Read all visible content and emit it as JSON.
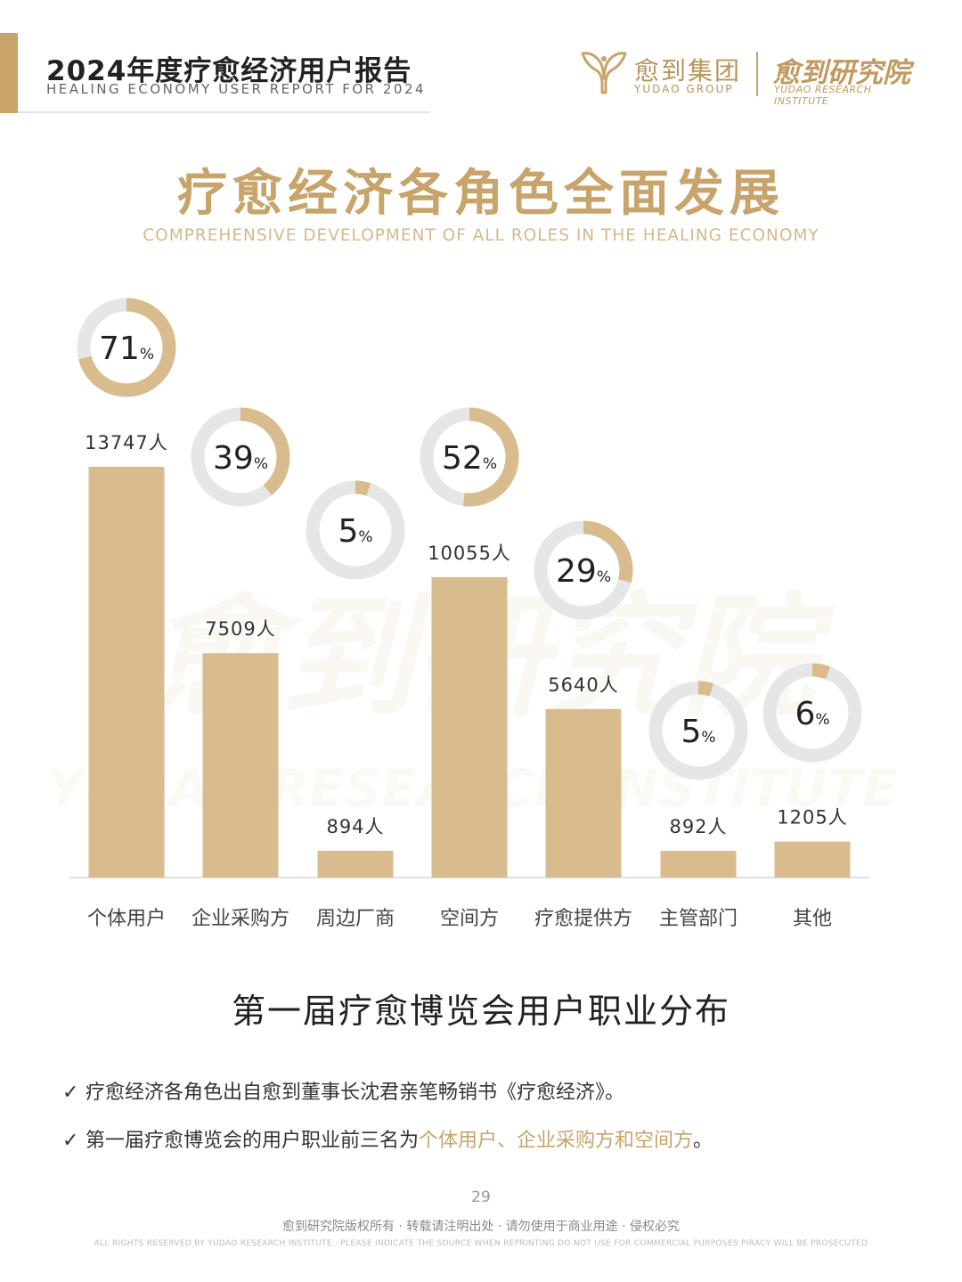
{
  "header": {
    "title": "2024年度疗愈经济用户报告",
    "subtitle": "HEALING ECONOMY USER REPORT FOR 2024"
  },
  "brand": {
    "group_cn": "愈到集团",
    "group_en": "YUDAO GROUP",
    "institute_cn": "愈到研究院",
    "institute_en": "YUDAO RESEARCH INSTITUTE"
  },
  "main": {
    "title": "疗愈经济各角色全面发展",
    "subtitle": "COMPREHENSIVE DEVELOPMENT OF ALL ROLES IN THE HEALING ECONOMY"
  },
  "watermark": {
    "cn": "愈到研究院",
    "en": "YUDAO RESEARCH INSTITUTE"
  },
  "colors": {
    "accent": "#c8a36a",
    "bar": "#d9bc8d",
    "ring_track": "#e6e6e6"
  },
  "chart_data": {
    "type": "bar",
    "title": "第一届疗愈博览会用户职业分布",
    "categories": [
      "个体用户",
      "企业采购方",
      "周边厂商",
      "空间方",
      "疗愈提供方",
      "主管部门",
      "其他"
    ],
    "values": [
      13747,
      7509,
      894,
      10055,
      5640,
      892,
      1205
    ],
    "value_labels": [
      "13747人",
      "7509人",
      "894人",
      "10055人",
      "5640人",
      "892人",
      "1205人"
    ],
    "percentages": [
      71,
      39,
      5,
      52,
      29,
      5,
      6
    ],
    "percent_symbol": "%",
    "ylim": [
      0,
      13747
    ],
    "grid": false
  },
  "notes": {
    "bullet1": "疗愈经济各角色出自愈到董事长沈君亲笔畅销书《疗愈经济》。",
    "bullet2_prefix": "第一届疗愈博览会的用户职业前三名为",
    "bullet2_highlight": "个体用户、企业采购方和空间方",
    "bullet2_suffix": "。",
    "check_symbol": "✓"
  },
  "footer": {
    "page": "29",
    "copyright_cn": "愈到研究院版权所有 · 转载请注明出处 · 请勿使用于商业用途 · 侵权必究",
    "copyright_en": "ALL RIGHTS RESERVED BY YUDAO RESEARCH INSTITUTE · PLEASE INDICATE THE SOURCE WHEN REPRINTING  DO NOT USE FOR COMMERCIAL PURPOSES  PIRACY WILL BE PROSECUTED"
  }
}
